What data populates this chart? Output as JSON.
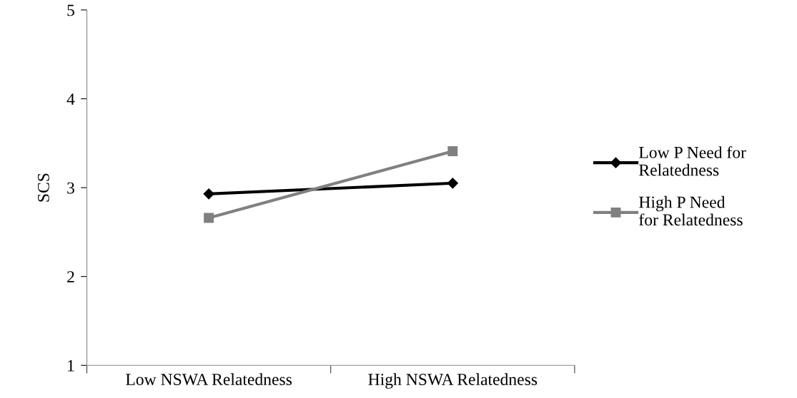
{
  "chart_data": {
    "type": "line",
    "ylabel": "SCS",
    "categories": [
      "Low NSWA Relatedness",
      "High NSWA Relatedness"
    ],
    "series": [
      {
        "name": "Low P Need for\nRelatedness",
        "color": "#000000",
        "values": [
          2.93,
          3.05
        ],
        "marker": "diamond"
      },
      {
        "name": "High P Need\nfor Relatedness",
        "color": "#808080",
        "values": [
          2.66,
          3.41
        ],
        "marker": "square"
      }
    ],
    "ylim": [
      1,
      5
    ],
    "yticks": [
      1,
      2,
      3,
      4,
      5
    ],
    "grid": false,
    "legend": "right",
    "line_style": "solid"
  }
}
